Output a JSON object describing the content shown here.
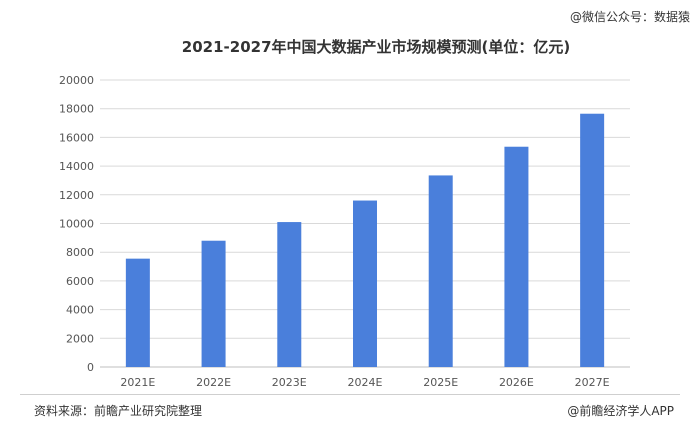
{
  "header": {
    "watermark": "@微信公众号：数据猿"
  },
  "chart_data": {
    "type": "bar",
    "title": "2021-2027年中国大数据产业市场规模预测(单位：亿元)",
    "categories": [
      "2021E",
      "2022E",
      "2023E",
      "2024E",
      "2025E",
      "2026E",
      "2027E"
    ],
    "values": [
      7550,
      8800,
      10100,
      11600,
      13350,
      15350,
      17650
    ],
    "ylim": [
      0,
      20000
    ],
    "yticks": [
      0,
      2000,
      4000,
      6000,
      8000,
      10000,
      12000,
      14000,
      16000,
      18000,
      20000
    ],
    "grid": true,
    "bar_color": "#4a7fdb",
    "grid_color": "#d9d9d9"
  },
  "footer": {
    "source": "资料来源：前瞻产业研究院整理",
    "brand": "@前瞻经济学人APP"
  }
}
